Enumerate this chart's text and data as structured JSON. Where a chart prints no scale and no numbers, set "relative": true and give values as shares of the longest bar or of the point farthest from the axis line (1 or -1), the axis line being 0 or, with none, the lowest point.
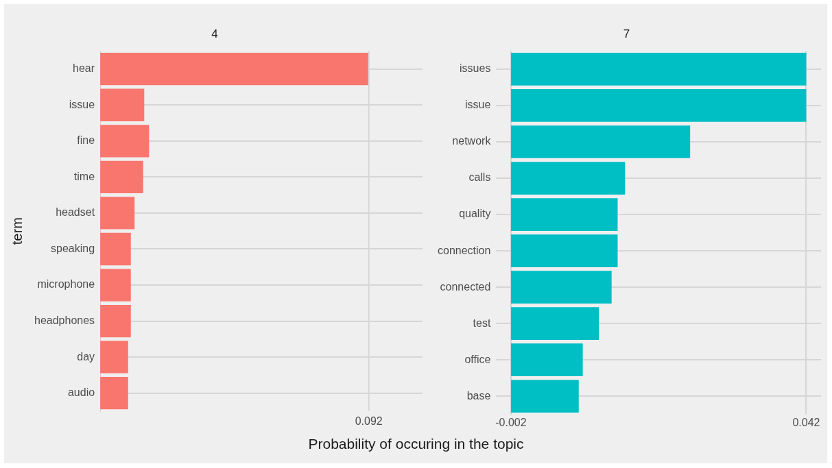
{
  "chart_data": [
    {
      "type": "bar",
      "orientation": "horizontal",
      "title": "4",
      "ylabel": "term",
      "xlabel": "Probability of occuring in the topic",
      "categories": [
        "hear",
        "issue",
        "fine",
        "time",
        "headset",
        "speaking",
        "microphone",
        "headphones",
        "day",
        "audio"
      ],
      "values": [
        1,
        0.164,
        0.182,
        0.16,
        0.128,
        0.114,
        0.114,
        0.114,
        0.104,
        0.104
      ],
      "relative": true,
      "annotations": [
        "0.092"
      ],
      "color": "#f8766d",
      "grid": true
    },
    {
      "type": "bar",
      "orientation": "horizontal",
      "title": "7",
      "categories": [
        "issues",
        "issue",
        "network",
        "calls",
        "quality",
        "connection",
        "connected",
        "test",
        "office",
        "base"
      ],
      "values": [
        0.044,
        0.044,
        0.0267,
        0.017,
        0.0159,
        0.0159,
        0.015,
        0.0131,
        0.0107,
        0.0101
      ],
      "base": [
        -0.002,
        -0.002,
        -0.002,
        -0.002,
        -0.002,
        -0.002,
        -0.002,
        -0.002,
        -0.002,
        -0.002
      ],
      "color": "#00bfc4",
      "xlim": [
        -0.0042,
        0.0442
      ],
      "xticks": [
        -0.002,
        0.042
      ],
      "grid": true
    }
  ]
}
